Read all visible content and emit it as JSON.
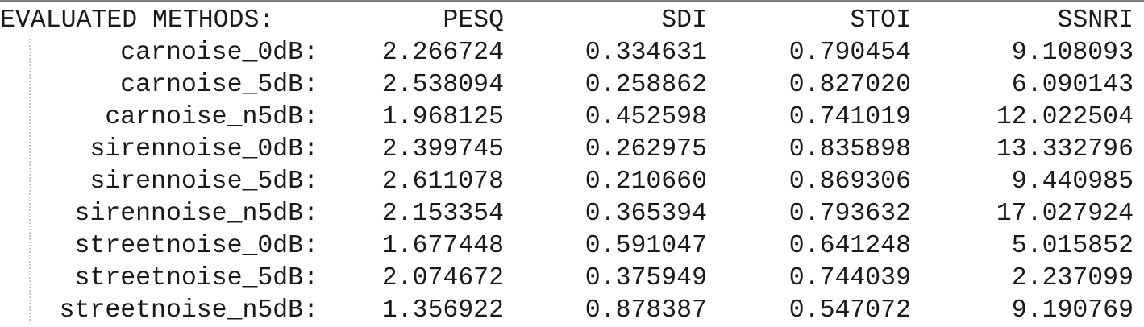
{
  "header": {
    "label": "EVALUATED METHODS:",
    "columns": [
      "PESQ",
      "SDI",
      "STOI",
      "SSNRI"
    ]
  },
  "rows": [
    {
      "method": "carnoise_0dB:",
      "values": [
        "2.266724",
        "0.334631",
        "0.790454",
        "9.108093"
      ]
    },
    {
      "method": "carnoise_5dB:",
      "values": [
        "2.538094",
        "0.258862",
        "0.827020",
        "6.090143"
      ]
    },
    {
      "method": "carnoise_n5dB:",
      "values": [
        "1.968125",
        "0.452598",
        "0.741019",
        "12.022504"
      ]
    },
    {
      "method": "sirennoise_0dB:",
      "values": [
        "2.399745",
        "0.262975",
        "0.835898",
        "13.332796"
      ]
    },
    {
      "method": "sirennoise_5dB:",
      "values": [
        "2.611078",
        "0.210660",
        "0.869306",
        "9.440985"
      ]
    },
    {
      "method": "sirennoise_n5dB:",
      "values": [
        "2.153354",
        "0.365394",
        "0.793632",
        "17.027924"
      ]
    },
    {
      "method": "streetnoise_0dB:",
      "values": [
        "1.677448",
        "0.591047",
        "0.641248",
        "5.015852"
      ]
    },
    {
      "method": "streetnoise_5dB:",
      "values": [
        "2.074672",
        "0.375949",
        "0.744039",
        "2.237099"
      ]
    },
    {
      "method": "streetnoise_n5dB:",
      "values": [
        "1.356922",
        "0.878387",
        "0.547072",
        "9.190769"
      ]
    }
  ]
}
